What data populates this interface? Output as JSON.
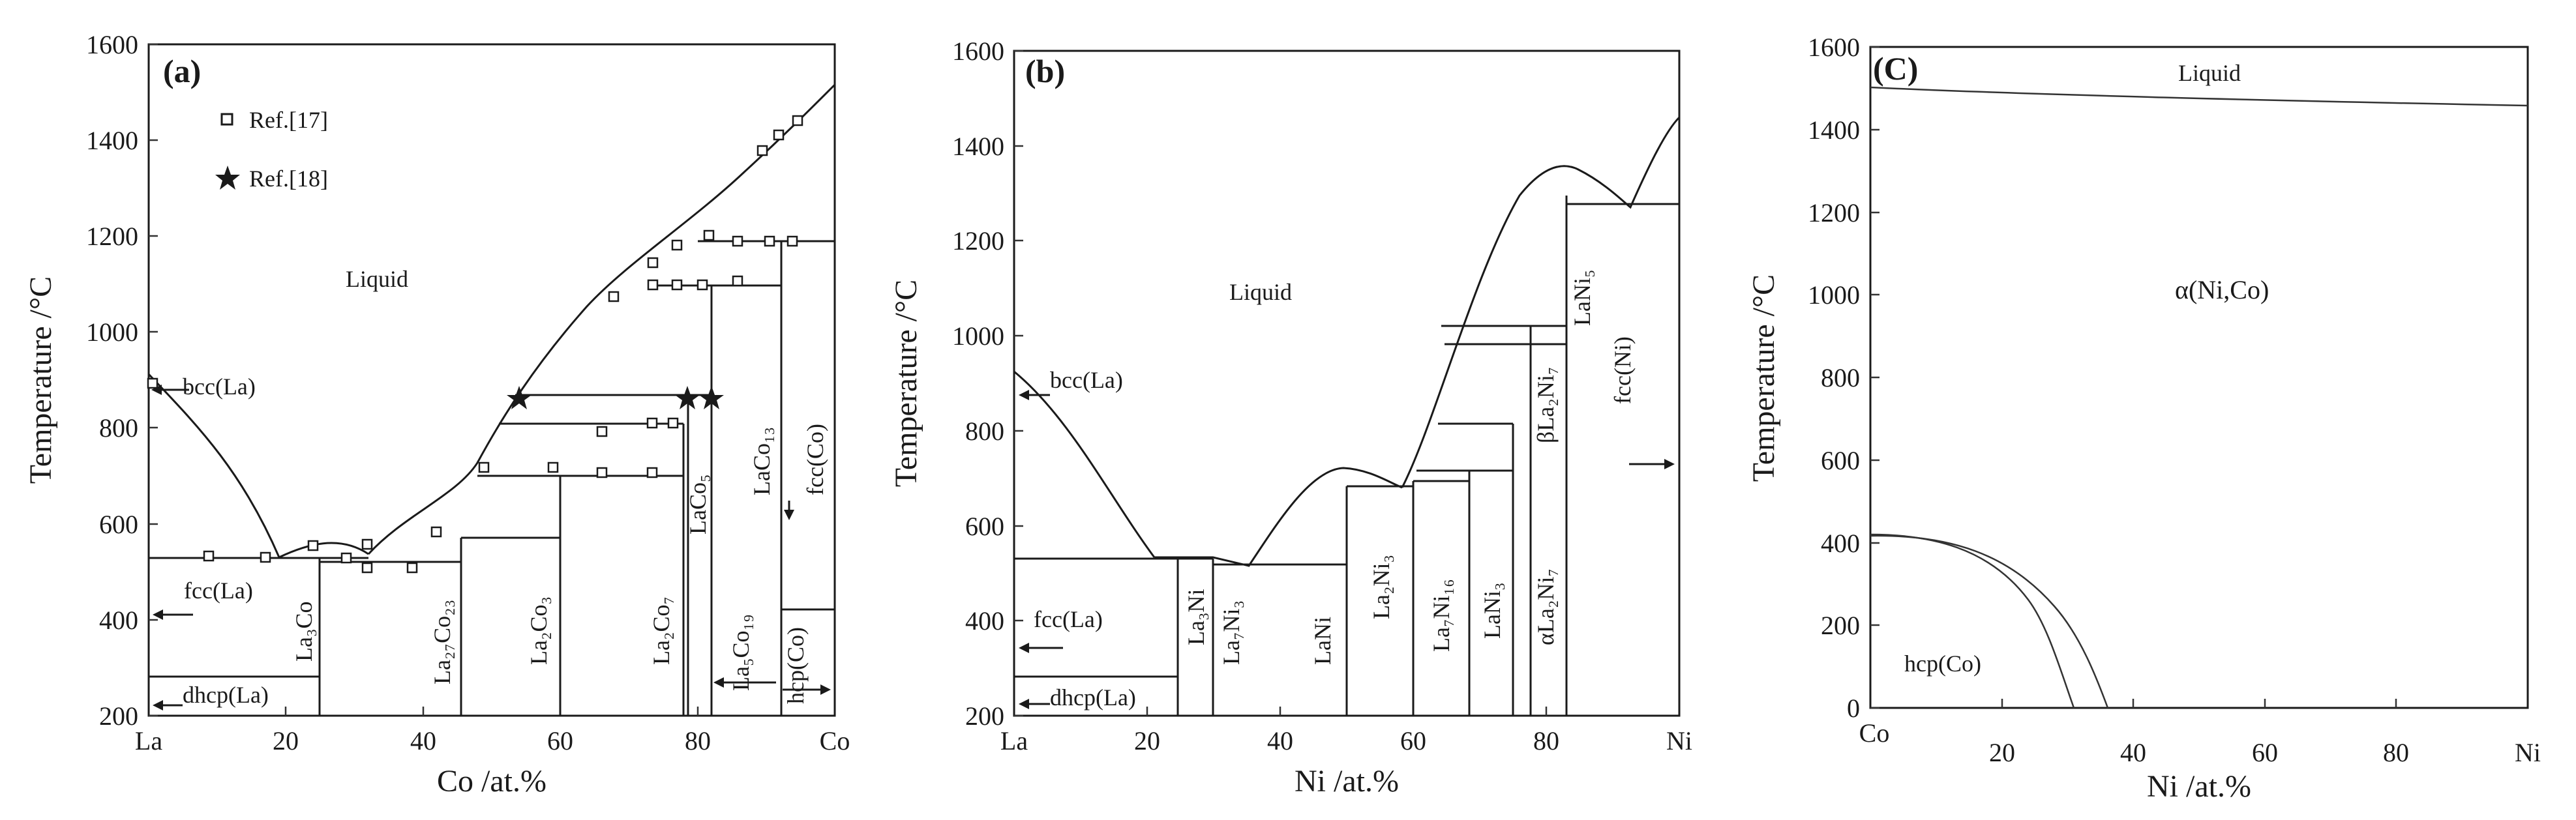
{
  "panels": [
    {
      "label": "(a)",
      "ylabel": "Temperature /°C",
      "xlabel": "Co /at.%",
      "x_left": "La",
      "x_right": "Co",
      "xticks": [
        "20",
        "40",
        "60",
        "80"
      ],
      "yticks": [
        "200",
        "400",
        "600",
        "800",
        "1000",
        "1200",
        "1400",
        "1600"
      ],
      "legend": [
        {
          "symbol": "open-square",
          "label": "Ref.[17]"
        },
        {
          "symbol": "star",
          "label": "Ref.[18]"
        }
      ],
      "phases": {
        "liquid": "Liquid",
        "bcc": "bcc(La)",
        "fcc": "fcc(La)",
        "dhcp": "dhcp(La)",
        "la3co": "La₃Co",
        "la27co23": "La₂₇Co₂₃",
        "la2co3": "La₂Co₃",
        "la2co7": "La₂Co₇",
        "laco5": "LaCo₅",
        "la5co19": "La₅Co₁₉",
        "laco13": "LaCo₁₃",
        "fcc_co": "fcc(Co)",
        "hcp_co": "hcp(Co)"
      }
    },
    {
      "label": "(b)",
      "ylabel": "Temperature /°C",
      "xlabel": "Ni /at.%",
      "x_left": "La",
      "x_right": "Ni",
      "xticks": [
        "20",
        "40",
        "60",
        "80"
      ],
      "yticks": [
        "200",
        "400",
        "600",
        "800",
        "1000",
        "1200",
        "1400",
        "1600"
      ],
      "phases": {
        "liquid": "Liquid",
        "bcc": "bcc(La)",
        "fcc": "fcc(La)",
        "dhcp": "dhcp(La)",
        "la3ni": "La₃Ni",
        "la7ni3": "La₇Ni₃",
        "lani": "LaNi",
        "la2ni3": "La₂Ni₃",
        "la7ni16": "La₇Ni₁₆",
        "lani3": "LaNi₃",
        "alpha": "αLa₂Ni₇",
        "beta": "βLa₂Ni₇",
        "lani5": "LaNi₅",
        "fcc_ni": "fcc(Ni)"
      }
    },
    {
      "label": "(C)",
      "ylabel": "Temperature /°C",
      "xlabel": "Ni /at.%",
      "x_left": "Co",
      "x_right": "Ni",
      "xticks": [
        "20",
        "40",
        "60",
        "80"
      ],
      "yticks": [
        "0",
        "200",
        "400",
        "600",
        "800",
        "1000",
        "1200",
        "1400",
        "1600"
      ],
      "phases": {
        "liquid": "Liquid",
        "alpha": "α(Ni,Co)",
        "hcp": "hcp(Co)"
      }
    }
  ]
}
